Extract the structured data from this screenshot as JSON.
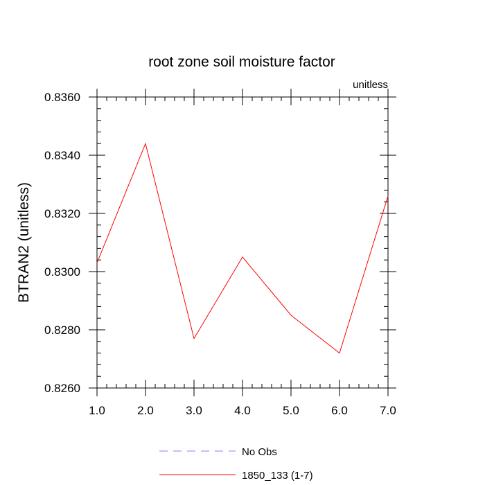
{
  "chart_data": {
    "type": "line",
    "title": "root zone soil moisture factor",
    "units_label": "unitless",
    "ylabel": "BTRAN2  (unitless)",
    "xlabel": "",
    "xlim": [
      1.0,
      7.0
    ],
    "ylim": [
      0.826,
      0.836
    ],
    "x_ticks": [
      "1.0",
      "2.0",
      "3.0",
      "4.0",
      "5.0",
      "6.0",
      "7.0"
    ],
    "y_ticks": [
      "0.8260",
      "0.8280",
      "0.8300",
      "0.8320",
      "0.8340",
      "0.8360"
    ],
    "grid": false,
    "legend_position": "bottom",
    "series": [
      {
        "name": "1850_133 (1-7)",
        "color": "#ff0000",
        "dash": "solid",
        "x": [
          1.0,
          2.0,
          3.0,
          4.0,
          5.0,
          6.0,
          7.0
        ],
        "values": [
          0.8303,
          0.8344,
          0.8277,
          0.8305,
          0.8285,
          0.8272,
          0.8326
        ]
      },
      {
        "name": "No Obs",
        "color": "#8080ff",
        "dash": "dashed",
        "x": [],
        "values": []
      }
    ]
  }
}
